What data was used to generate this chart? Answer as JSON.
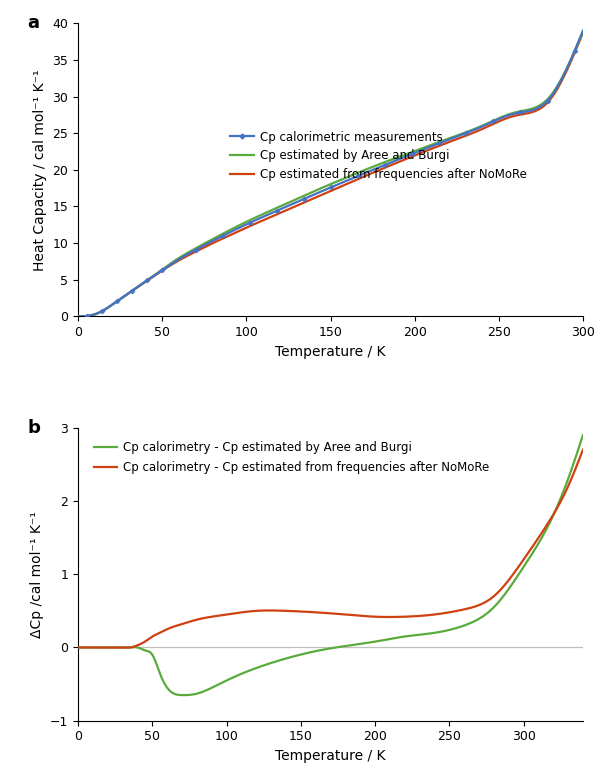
{
  "panel_a": {
    "xlabel": "Temperature / K",
    "ylabel": "Heat Capacity / cal mol⁻¹ K⁻¹",
    "xlim": [
      0,
      300
    ],
    "ylim": [
      0,
      40
    ],
    "xticks": [
      0,
      50,
      100,
      150,
      200,
      250,
      300
    ],
    "yticks": [
      0,
      5,
      10,
      15,
      20,
      25,
      30,
      35,
      40
    ],
    "legend_entries": [
      "Cp calorimetric measurements",
      "Cp estimated by Aree and Burgi",
      "Cp estimated from frequencies after NoMoRe"
    ]
  },
  "panel_b": {
    "xlabel": "Temperature / K",
    "ylabel": "ΔCp /cal mol⁻¹ K⁻¹",
    "xlim": [
      0,
      340
    ],
    "ylim": [
      -1,
      3
    ],
    "xticks": [
      0,
      50,
      100,
      150,
      200,
      250,
      300
    ],
    "yticks": [
      -1,
      0,
      1,
      2,
      3
    ],
    "legend_entries": [
      "Cp calorimetry - Cp estimated by Aree and Burgi",
      "Cp calorimetry - Cp estimated from frequencies after NoMoRe"
    ]
  },
  "blue_color": "#4472C4",
  "green_color": "#5AAA3C",
  "red_color": "#D04010",
  "background_color": "#ffffff",
  "label_fontsize": 10,
  "tick_fontsize": 9,
  "legend_fontsize": 8.5,
  "line_width": 1.6,
  "T_key_a": [
    0,
    5,
    10,
    15,
    20,
    25,
    30,
    35,
    40,
    50,
    60,
    70,
    80,
    90,
    100,
    120,
    140,
    160,
    180,
    200,
    220,
    240,
    260,
    280,
    300
  ],
  "Cp_cal_key": [
    0,
    0.04,
    0.28,
    0.8,
    1.55,
    2.35,
    3.15,
    3.95,
    4.75,
    6.3,
    7.8,
    9.1,
    10.3,
    11.45,
    12.55,
    14.6,
    16.6,
    18.55,
    20.45,
    22.3,
    24.1,
    25.9,
    27.7,
    29.7,
    39.0
  ],
  "Cp_aree_key": [
    0,
    0.04,
    0.28,
    0.8,
    1.55,
    2.35,
    3.15,
    3.95,
    4.75,
    6.4,
    7.98,
    9.3,
    10.55,
    11.75,
    12.9,
    15.0,
    17.05,
    19.0,
    20.85,
    22.55,
    24.25,
    26.0,
    27.85,
    29.9,
    38.8
  ],
  "Cp_nomore_key": [
    0,
    0.04,
    0.28,
    0.8,
    1.55,
    2.35,
    3.15,
    3.95,
    4.72,
    6.25,
    7.65,
    8.85,
    9.98,
    11.05,
    12.1,
    14.1,
    16.1,
    18.1,
    20.07,
    21.95,
    23.75,
    25.55,
    27.4,
    29.45,
    38.7
  ],
  "T_diff_key": [
    0,
    5,
    10,
    15,
    20,
    25,
    30,
    35,
    40,
    45,
    50,
    55,
    60,
    70,
    80,
    90,
    100,
    120,
    140,
    160,
    180,
    200,
    220,
    240,
    260,
    280,
    300,
    315,
    330,
    340
  ],
  "dCp_green_key": [
    0,
    0.0,
    0.0,
    0.0,
    0.0,
    0.0,
    0.0,
    0.0,
    0.0,
    -0.04,
    -0.1,
    -0.35,
    -0.55,
    -0.65,
    -0.63,
    -0.55,
    -0.45,
    -0.28,
    -0.15,
    -0.05,
    0.02,
    0.08,
    0.15,
    0.2,
    0.3,
    0.55,
    1.1,
    1.6,
    2.3,
    2.9
  ],
  "dCp_red_key": [
    0,
    0.0,
    0.0,
    0.0,
    0.0,
    0.0,
    0.0,
    0.0,
    0.03,
    0.08,
    0.15,
    0.2,
    0.25,
    0.32,
    0.38,
    0.42,
    0.45,
    0.5,
    0.5,
    0.48,
    0.45,
    0.42,
    0.42,
    0.45,
    0.52,
    0.7,
    1.2,
    1.65,
    2.2,
    2.7
  ]
}
